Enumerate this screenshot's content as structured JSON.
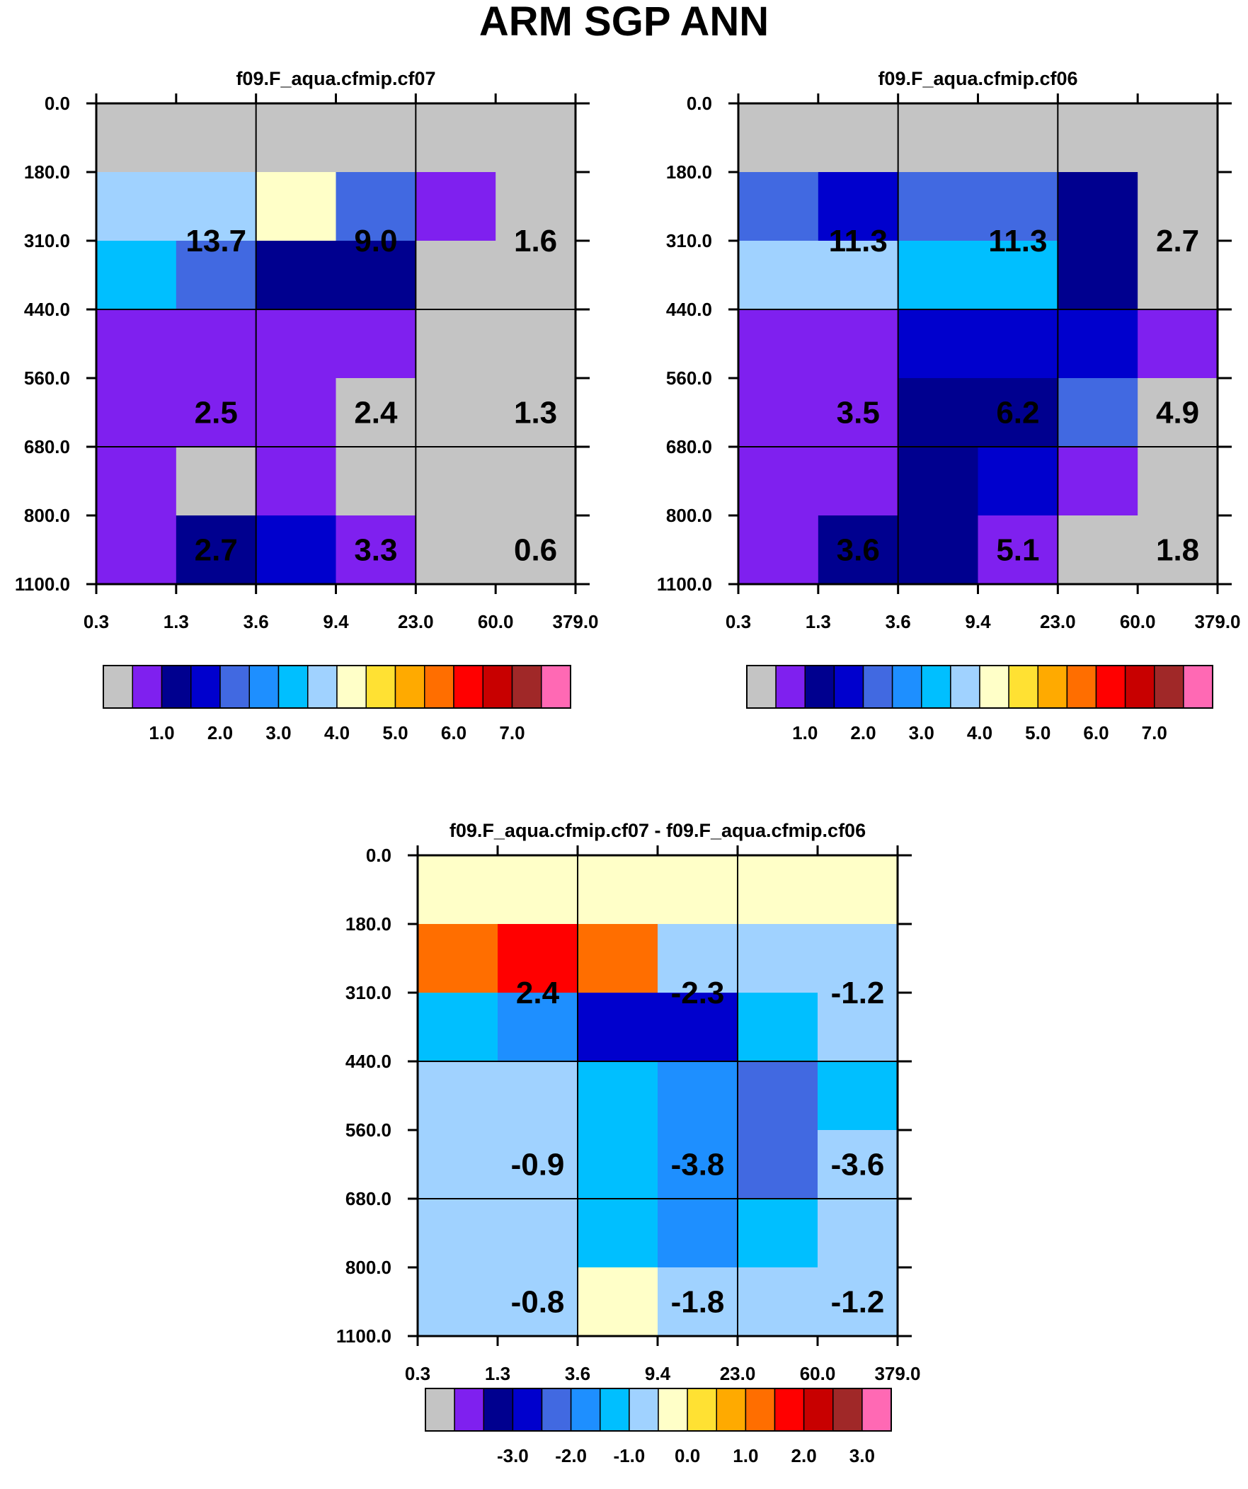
{
  "title": "ARM SGP ANN",
  "palette": {
    "missing": "#c4c4c4",
    "colors": [
      "#c4c4c4",
      "#7f20ef",
      "#00008f",
      "#0000cd",
      "#4169e1",
      "#1e8fff",
      "#00bfff",
      "#a0d2ff",
      "#ffffc8",
      "#ffe133",
      "#ffaa00",
      "#ff6e00",
      "#ff0000",
      "#c80000",
      "#a02828",
      "#ff69b4"
    ]
  },
  "chart_data": [
    {
      "type": "heatmap",
      "title": "f09.F_aqua.cfmip.cf07",
      "xlabel": "",
      "ylabel": "",
      "x_ticks": [
        "0.3",
        "1.3",
        "3.6",
        "9.4",
        "23.0",
        "60.0",
        "379.0"
      ],
      "y_ticks": [
        "0.0",
        "180.0",
        "310.0",
        "440.0",
        "560.0",
        "680.0",
        "800.0",
        "1100.0"
      ],
      "grid_major_x": [
        2,
        4
      ],
      "grid_major_y": [
        3,
        5
      ],
      "cells": [
        [
          0,
          0,
          0,
          0,
          0,
          0
        ],
        [
          7,
          7,
          8,
          4,
          1,
          0
        ],
        [
          6,
          4,
          2,
          2,
          0,
          0
        ],
        [
          1,
          1,
          1,
          1,
          0,
          0
        ],
        [
          1,
          1,
          1,
          0,
          0,
          0
        ],
        [
          1,
          0,
          1,
          0,
          0,
          0
        ],
        [
          1,
          2,
          3,
          1,
          0,
          0
        ]
      ],
      "block_labels": [
        {
          "text": "13.7",
          "col": 1,
          "row": 1.5
        },
        {
          "text": "9.0",
          "col": 3,
          "row": 1.5
        },
        {
          "text": "1.6",
          "col": 5,
          "row": 1.5
        },
        {
          "text": "2.5",
          "col": 1,
          "row": 4
        },
        {
          "text": "2.4",
          "col": 3,
          "row": 4
        },
        {
          "text": "1.3",
          "col": 5,
          "row": 4
        },
        {
          "text": "2.7",
          "col": 1,
          "row": 6
        },
        {
          "text": "3.3",
          "col": 3,
          "row": 6
        },
        {
          "text": "0.6",
          "col": 5,
          "row": 6
        }
      ],
      "colorbar": {
        "labels": [
          "1.0",
          "2.0",
          "3.0",
          "4.0",
          "5.0",
          "6.0",
          "7.0"
        ],
        "label_after_box": [
          1,
          3,
          5,
          7,
          9,
          11,
          13
        ]
      }
    },
    {
      "type": "heatmap",
      "title": "f09.F_aqua.cfmip.cf06",
      "xlabel": "",
      "ylabel": "",
      "x_ticks": [
        "0.3",
        "1.3",
        "3.6",
        "9.4",
        "23.0",
        "60.0",
        "379.0"
      ],
      "y_ticks": [
        "0.0",
        "180.0",
        "310.0",
        "440.0",
        "560.0",
        "680.0",
        "800.0",
        "1100.0"
      ],
      "grid_major_x": [
        2,
        4
      ],
      "grid_major_y": [
        3,
        5
      ],
      "cells": [
        [
          0,
          0,
          0,
          0,
          0,
          0
        ],
        [
          4,
          3,
          4,
          4,
          2,
          0
        ],
        [
          7,
          7,
          6,
          6,
          2,
          0
        ],
        [
          1,
          1,
          3,
          3,
          3,
          1
        ],
        [
          1,
          1,
          2,
          2,
          4,
          0
        ],
        [
          1,
          1,
          2,
          3,
          1,
          0
        ],
        [
          1,
          2,
          2,
          1,
          0,
          0
        ]
      ],
      "block_labels": [
        {
          "text": "11.3",
          "col": 1,
          "row": 1.5
        },
        {
          "text": "11.3",
          "col": 3,
          "row": 1.5
        },
        {
          "text": "2.7",
          "col": 5,
          "row": 1.5
        },
        {
          "text": "3.5",
          "col": 1,
          "row": 4
        },
        {
          "text": "6.2",
          "col": 3,
          "row": 4
        },
        {
          "text": "4.9",
          "col": 5,
          "row": 4
        },
        {
          "text": "3.6",
          "col": 1,
          "row": 6
        },
        {
          "text": "5.1",
          "col": 3,
          "row": 6
        },
        {
          "text": "1.8",
          "col": 5,
          "row": 6
        }
      ],
      "colorbar": {
        "labels": [
          "1.0",
          "2.0",
          "3.0",
          "4.0",
          "5.0",
          "6.0",
          "7.0"
        ],
        "label_after_box": [
          1,
          3,
          5,
          7,
          9,
          11,
          13
        ]
      }
    },
    {
      "type": "heatmap",
      "title": "f09.F_aqua.cfmip.cf07 - f09.F_aqua.cfmip.cf06",
      "xlabel": "",
      "ylabel": "",
      "x_ticks": [
        "0.3",
        "1.3",
        "3.6",
        "9.4",
        "23.0",
        "60.0",
        "379.0"
      ],
      "y_ticks": [
        "0.0",
        "180.0",
        "310.0",
        "440.0",
        "560.0",
        "680.0",
        "800.0",
        "1100.0"
      ],
      "grid_major_x": [
        2,
        4
      ],
      "grid_major_y": [
        3,
        5
      ],
      "cells": [
        [
          8,
          8,
          8,
          8,
          8,
          8
        ],
        [
          11,
          12,
          11,
          7,
          7,
          7
        ],
        [
          6,
          5,
          3,
          3,
          6,
          7
        ],
        [
          7,
          7,
          6,
          5,
          4,
          6
        ],
        [
          7,
          7,
          6,
          5,
          4,
          7
        ],
        [
          7,
          7,
          6,
          5,
          6,
          7
        ],
        [
          7,
          7,
          8,
          7,
          7,
          7
        ]
      ],
      "block_labels": [
        {
          "text": "2.4",
          "col": 1,
          "row": 1.5
        },
        {
          "text": "-2.3",
          "col": 3,
          "row": 1.5
        },
        {
          "text": "-1.2",
          "col": 5,
          "row": 1.5
        },
        {
          "text": "-0.9",
          "col": 1,
          "row": 4
        },
        {
          "text": "-3.8",
          "col": 3,
          "row": 4
        },
        {
          "text": "-3.6",
          "col": 5,
          "row": 4
        },
        {
          "text": "-0.8",
          "col": 1,
          "row": 6
        },
        {
          "text": "-1.8",
          "col": 3,
          "row": 6
        },
        {
          "text": "-1.2",
          "col": 5,
          "row": 6
        }
      ],
      "colorbar": {
        "labels": [
          "-3.0",
          "-2.0",
          "-1.0",
          "0.0",
          "1.0",
          "2.0",
          "3.0"
        ],
        "label_after_box": [
          2,
          4,
          6,
          8,
          10,
          12,
          14
        ]
      }
    }
  ]
}
